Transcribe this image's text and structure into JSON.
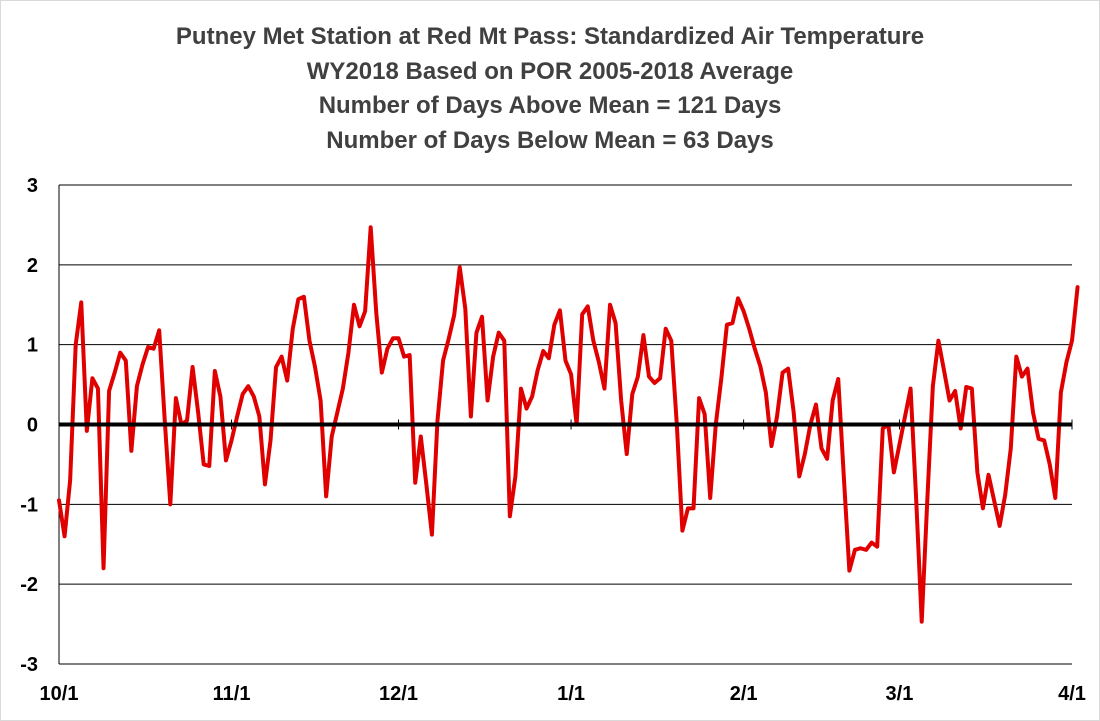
{
  "chart_data": {
    "type": "line",
    "title_lines": [
      "Putney Met Station at Red Mt Pass: Standardized Air Temperature",
      "WY2018 Based on POR 2005-2018 Average",
      "Number of Days Above Mean = 121 Days",
      "Number of Days Below Mean = 63 Days"
    ],
    "xlabel": "",
    "ylabel": "",
    "ylim": [
      -3,
      3
    ],
    "yticks": [
      "3",
      "2",
      "1",
      "0",
      "-1",
      "-2",
      "-3"
    ],
    "xtick_labels": [
      {
        "label": "10/1",
        "day": 0
      },
      {
        "label": "11/1",
        "day": 31
      },
      {
        "label": "12/1",
        "day": 61
      },
      {
        "label": "1/1",
        "day": 92
      },
      {
        "label": "2/1",
        "day": 123
      },
      {
        "label": "3/1",
        "day": 151
      },
      {
        "label": "4/1",
        "day": 182
      }
    ],
    "grid": true,
    "zero_line": true,
    "series": [
      {
        "color": "#e00000",
        "values": [
          -0.95,
          -1.4,
          -0.7,
          1.0,
          1.53,
          -0.08,
          0.58,
          0.45,
          -1.8,
          0.42,
          0.65,
          0.9,
          0.8,
          -0.33,
          0.48,
          0.75,
          0.97,
          0.95,
          1.18,
          0.05,
          -1.0,
          0.33,
          0.0,
          0.05,
          0.72,
          0.15,
          -0.5,
          -0.52,
          0.67,
          0.35,
          -0.45,
          -0.2,
          0.1,
          0.38,
          0.48,
          0.35,
          0.1,
          -0.75,
          -0.2,
          0.72,
          0.85,
          0.55,
          1.2,
          1.57,
          1.6,
          1.05,
          0.72,
          0.3,
          -0.9,
          -0.15,
          0.15,
          0.45,
          0.9,
          1.5,
          1.23,
          1.42,
          2.47,
          1.4,
          0.65,
          0.95,
          1.08,
          1.08,
          0.85,
          0.87,
          -0.73,
          -0.15,
          -0.75,
          -1.38,
          0.05,
          0.8,
          1.07,
          1.37,
          1.97,
          1.45,
          0.1,
          1.15,
          1.35,
          0.3,
          0.85,
          1.15,
          1.05,
          -1.15,
          -0.65,
          0.45,
          0.2,
          0.35,
          0.68,
          0.92,
          0.83,
          1.25,
          1.43,
          0.8,
          0.63,
          0.0,
          1.38,
          1.48,
          1.05,
          0.78,
          0.45,
          1.5,
          1.27,
          0.3,
          -0.37,
          0.38,
          0.6,
          1.12,
          0.6,
          0.52,
          0.58,
          1.2,
          1.05,
          0.0,
          -1.33,
          -1.05,
          -1.05,
          0.33,
          0.13,
          -0.92,
          0.0,
          0.58,
          1.25,
          1.27,
          1.58,
          1.42,
          1.2,
          0.95,
          0.73,
          0.4,
          -0.27,
          0.1,
          0.65,
          0.7,
          0.15,
          -0.65,
          -0.37,
          0.0,
          0.25,
          -0.3,
          -0.43,
          0.3,
          0.57,
          -0.65,
          -1.83,
          -1.57,
          -1.55,
          -1.57,
          -1.48,
          -1.53,
          -0.05,
          0.0,
          -0.6,
          -0.25,
          0.1,
          0.45,
          -0.93,
          -2.47,
          -0.95,
          0.48,
          1.05,
          0.68,
          0.3,
          0.42,
          -0.05,
          0.47,
          0.45,
          -0.6,
          -1.05,
          -0.63,
          -0.95,
          -1.27,
          -0.88,
          -0.3,
          0.85,
          0.6,
          0.7,
          0.15,
          -0.18,
          -0.2,
          -0.5,
          -0.92,
          0.4,
          0.78,
          1.05,
          1.72
        ]
      }
    ]
  }
}
